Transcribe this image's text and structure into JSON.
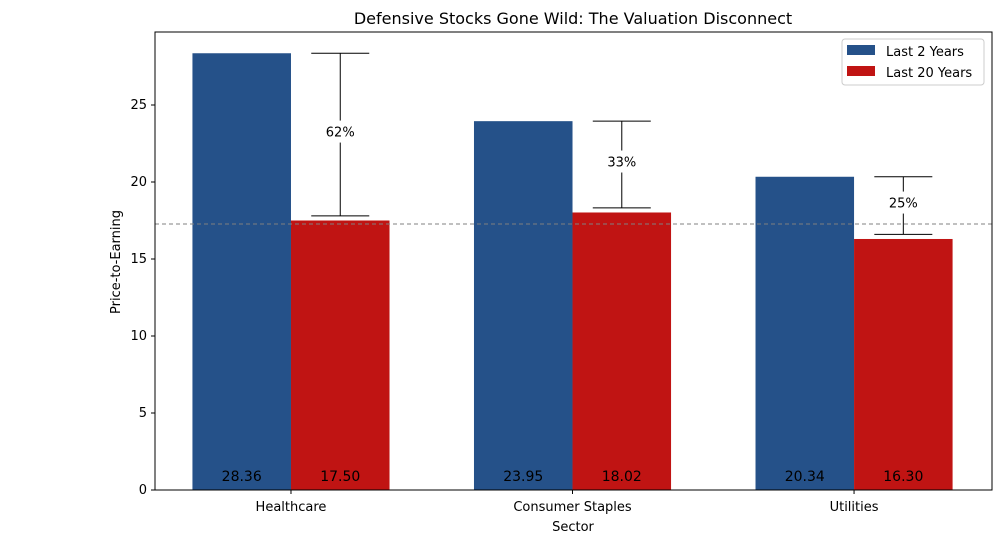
{
  "chart_data": {
    "type": "bar",
    "title": "Defensive Stocks Gone Wild: The Valuation Disconnect",
    "xlabel": "Sector",
    "ylabel": "Price-to-Earning",
    "categories": [
      "Healthcare",
      "Consumer Staples",
      "Utilities"
    ],
    "series": [
      {
        "name": "Last 2 Years",
        "color": "#255189",
        "values": [
          28.36,
          23.95,
          20.34
        ],
        "labels": [
          "28.36",
          "23.95",
          "20.34"
        ]
      },
      {
        "name": "Last 20 Years",
        "color": "#c01413",
        "values": [
          17.5,
          18.02,
          16.3
        ],
        "labels": [
          "17.50",
          "18.02",
          "16.30"
        ]
      }
    ],
    "premium_labels": [
      "62%",
      "33%",
      "25%"
    ],
    "reference_line": {
      "value": 17.27,
      "style": "dashed",
      "color": "#808080"
    },
    "ylim": [
      0,
      29.74
    ],
    "yticks": [
      0,
      5,
      10,
      15,
      20,
      25
    ],
    "ytick_labels": [
      "0",
      "5",
      "10",
      "15",
      "20",
      "25"
    ],
    "legend_position": "top-right",
    "grid": false
  }
}
